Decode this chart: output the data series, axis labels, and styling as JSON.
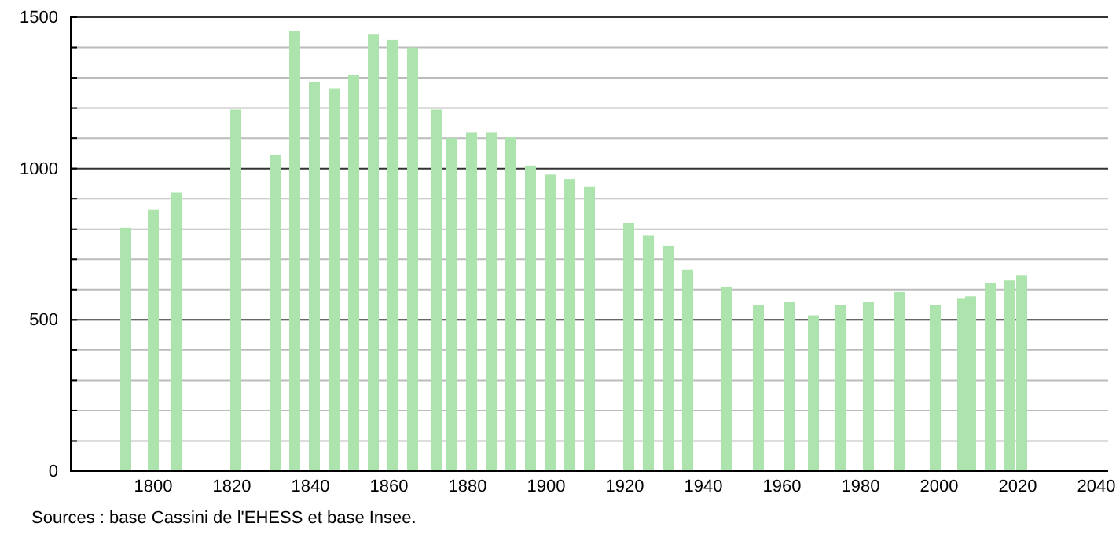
{
  "chart_data": {
    "type": "bar",
    "x": [
      1793,
      1800,
      1806,
      1821,
      1831,
      1836,
      1841,
      1846,
      1851,
      1856,
      1861,
      1866,
      1872,
      1876,
      1881,
      1886,
      1891,
      1896,
      1901,
      1906,
      1911,
      1921,
      1926,
      1931,
      1936,
      1946,
      1954,
      1962,
      1968,
      1975,
      1982,
      1990,
      1999,
      2006,
      2008,
      2013,
      2018,
      2021
    ],
    "values": [
      805,
      865,
      920,
      1195,
      1045,
      1455,
      1285,
      1265,
      1310,
      1445,
      1425,
      1400,
      1195,
      1100,
      1120,
      1120,
      1105,
      1010,
      980,
      965,
      940,
      820,
      780,
      745,
      665,
      610,
      548,
      558,
      515,
      548,
      558,
      592,
      548,
      570,
      578,
      622,
      630,
      648
    ],
    "color": "#ade3ad",
    "xlim": [
      1779,
      2043
    ],
    "xticks": [
      1800,
      1820,
      1840,
      1860,
      1880,
      1900,
      1920,
      1940,
      1960,
      1980,
      2000,
      2020,
      2040
    ],
    "ylim": [
      0,
      1500
    ],
    "yticks": [
      0,
      {
        "value": 100,
        "label": null
      },
      {
        "value": 200,
        "label": null
      },
      {
        "value": 300,
        "label": null
      },
      {
        "value": 400,
        "label": null
      },
      500,
      {
        "value": 600,
        "label": null
      },
      {
        "value": 700,
        "label": null
      },
      {
        "value": 800,
        "label": null
      },
      {
        "value": 900,
        "label": null
      },
      1000,
      {
        "value": 1100,
        "label": null
      },
      {
        "value": 1200,
        "label": null
      },
      {
        "value": 1300,
        "label": null
      },
      {
        "value": 1400,
        "label": null
      },
      1500
    ],
    "grid": "y",
    "annotations": [
      "Sources : base Cassini de l'EHESS et base Insee."
    ]
  }
}
